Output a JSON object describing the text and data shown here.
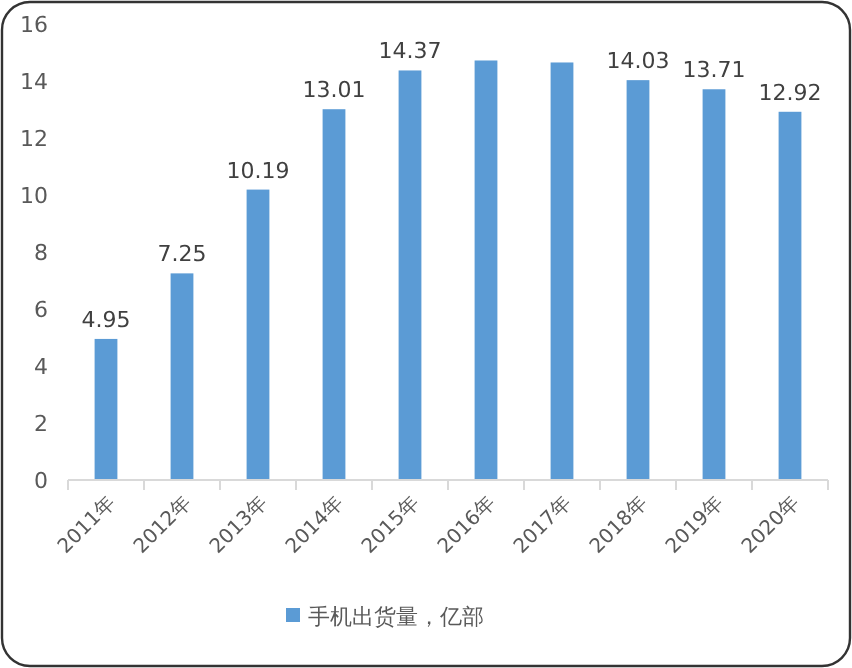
{
  "chart_data": {
    "type": "bar",
    "categories": [
      "2011年",
      "2012年",
      "2013年",
      "2014年",
      "2015年",
      "2016年",
      "2017年",
      "2018年",
      "2019年",
      "2020年"
    ],
    "series": [
      {
        "name": "手机出货量，亿部",
        "color": "#5b9bd5",
        "values": [
          4.95,
          7.25,
          10.19,
          13.01,
          14.37,
          14.72,
          14.65,
          14.03,
          13.71,
          12.92
        ],
        "value_labels": [
          "4.95",
          "7.25",
          "10.19",
          "13.01",
          "14.37",
          null,
          null,
          "14.03",
          "13.71",
          "12.92"
        ]
      }
    ],
    "ylim": [
      0,
      16
    ],
    "yticks": [
      0,
      2,
      4,
      6,
      8,
      10,
      12,
      14,
      16
    ],
    "grid": false,
    "legend": "bottom"
  }
}
